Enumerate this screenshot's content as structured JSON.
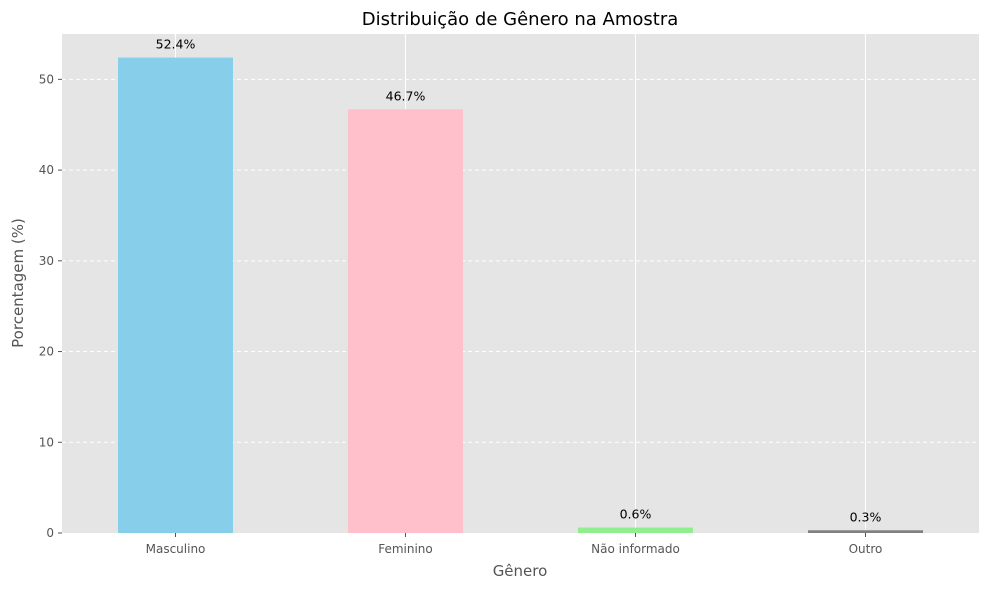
{
  "chart_data": {
    "type": "bar",
    "title": "Distribuição de Gênero na Amostra",
    "xlabel": "Gênero",
    "ylabel": "Porcentagem (%)",
    "categories": [
      "Masculino",
      "Feminino",
      "Não informado",
      "Outro"
    ],
    "values": [
      52.4,
      46.7,
      0.6,
      0.3
    ],
    "data_labels": [
      "52.4%",
      "46.7%",
      "0.6%",
      "0.3%"
    ],
    "bar_colors": [
      "#87CEEB",
      "#FFC0CB",
      "#90EE90",
      "#808080"
    ],
    "ylim": [
      0,
      55
    ],
    "yticks": [
      0,
      10,
      20,
      30,
      40,
      50
    ],
    "grid": true,
    "background_color": "#E5E5E5",
    "grid_color": "#FFFFFF"
  }
}
